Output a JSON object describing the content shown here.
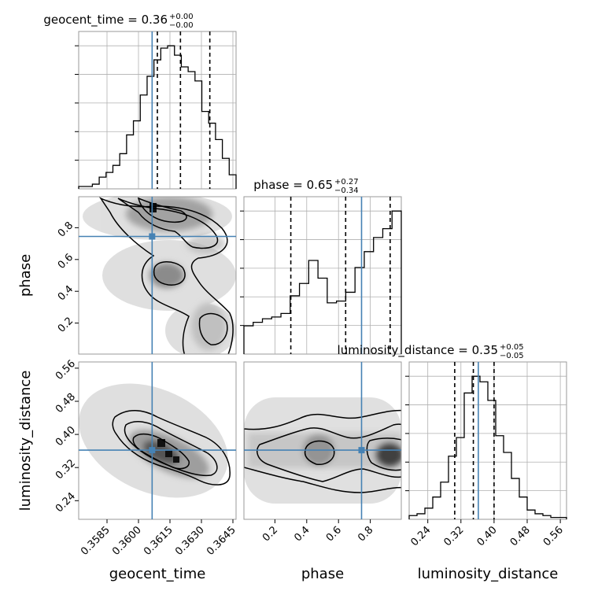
{
  "chart_data": {
    "type": "corner",
    "params": [
      "geocent_time",
      "phase",
      "luminosity_distance"
    ],
    "colors": {
      "truth": "#4682b4",
      "hist": "#000000",
      "contour": "#000000",
      "grid": "#b0b0b0",
      "frame": "#999999"
    },
    "truth": {
      "geocent_time": 0.36065,
      "phase": 0.745,
      "luminosity_distance": 0.362
    },
    "ranges": {
      "geocent_time": [
        0.35715,
        0.36465
      ],
      "phase": [
        0.005,
        0.995
      ],
      "luminosity_distance": [
        0.195,
        0.575
      ]
    },
    "ticks": {
      "geocent_time": {
        "values": [
          0.3585,
          0.36,
          0.3615,
          0.363,
          0.3645
        ],
        "labels": [
          "0.3585",
          "0.3600",
          "0.3615",
          "0.3630",
          "0.3645"
        ]
      },
      "phase": {
        "values": [
          0.2,
          0.4,
          0.6,
          0.8
        ],
        "labels": [
          "0.2",
          "0.4",
          "0.6",
          "0.8"
        ]
      },
      "luminosity_distance": {
        "values": [
          0.24,
          0.32,
          0.4,
          0.48,
          0.56
        ],
        "labels": [
          "0.24",
          "0.32",
          "0.40",
          "0.48",
          "0.56"
        ]
      }
    },
    "xlabels": [
      "geocent_time",
      "phase",
      "luminosity_distance"
    ],
    "ylabels": [
      "phase",
      "luminosity_distance"
    ],
    "titles": [
      {
        "param": "geocent_time",
        "prefix": "geocent_time = 0.36",
        "upper": "+0.00",
        "lower": "−0.00"
      },
      {
        "param": "phase",
        "prefix": "phase = 0.65",
        "upper": "+0.27",
        "lower": "−0.34"
      },
      {
        "param": "luminosity_distance",
        "prefix": "luminosity_distance = 0.35",
        "upper": "+0.05",
        "lower": "−0.05"
      }
    ],
    "quantiles": {
      "geocent_time": [
        0.3609,
        0.362,
        0.3634
      ],
      "phase": [
        0.3,
        0.645,
        0.925
      ],
      "luminosity_distance": [
        0.305,
        0.35,
        0.4
      ]
    },
    "histograms": {
      "geocent_time": {
        "edges_range": [
          0.35715,
          0.36465
        ],
        "counts": [
          1,
          1,
          2,
          5,
          7,
          10,
          15,
          23,
          29,
          40,
          48,
          55,
          60,
          61,
          57,
          52,
          50,
          46,
          33,
          28,
          21,
          13,
          6
        ]
      },
      "phase": {
        "edges_range": [
          0.005,
          0.995
        ],
        "counts": [
          16,
          18,
          20,
          21,
          23,
          33,
          40,
          53,
          43,
          29,
          30,
          35,
          49,
          58,
          66,
          71,
          81
        ]
      },
      "luminosity_distance": {
        "edges_range": [
          0.195,
          0.575
        ],
        "counts": [
          2,
          3,
          6,
          12,
          20,
          34,
          44,
          68,
          77,
          74,
          64,
          45,
          36,
          22,
          12,
          5,
          3,
          2,
          1,
          1
        ]
      }
    }
  }
}
